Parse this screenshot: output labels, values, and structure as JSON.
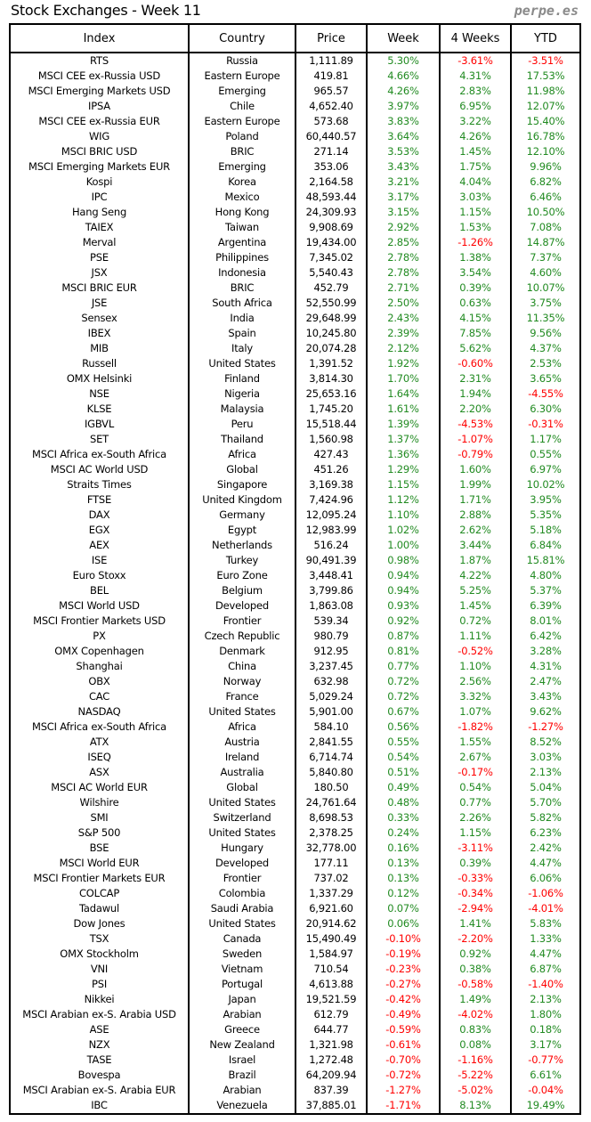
{
  "title": "Stock Exchanges - Week 11",
  "brand": "perpe.es",
  "colors": {
    "positive": "#228b22",
    "negative": "#ff0000"
  },
  "columns": [
    "Index",
    "Country",
    "Price",
    "Week",
    "4 Weeks",
    "YTD"
  ],
  "rows": [
    [
      "RTS",
      "Russia",
      "1,111.89",
      "5.30%",
      "-3.61%",
      "-3.51%"
    ],
    [
      "MSCI CEE ex-Russia USD",
      "Eastern Europe",
      "419.81",
      "4.66%",
      "4.31%",
      "17.53%"
    ],
    [
      "MSCI Emerging Markets USD",
      "Emerging",
      "965.57",
      "4.26%",
      "2.83%",
      "11.98%"
    ],
    [
      "IPSA",
      "Chile",
      "4,652.40",
      "3.97%",
      "6.95%",
      "12.07%"
    ],
    [
      "MSCI CEE ex-Russia EUR",
      "Eastern Europe",
      "573.68",
      "3.83%",
      "3.22%",
      "15.40%"
    ],
    [
      "WIG",
      "Poland",
      "60,440.57",
      "3.64%",
      "4.26%",
      "16.78%"
    ],
    [
      "MSCI BRIC USD",
      "BRIC",
      "271.14",
      "3.53%",
      "1.45%",
      "12.10%"
    ],
    [
      "MSCI Emerging Markets EUR",
      "Emerging",
      "353.06",
      "3.43%",
      "1.75%",
      "9.96%"
    ],
    [
      "Kospi",
      "Korea",
      "2,164.58",
      "3.21%",
      "4.04%",
      "6.82%"
    ],
    [
      "IPC",
      "Mexico",
      "48,593.44",
      "3.17%",
      "3.03%",
      "6.46%"
    ],
    [
      "Hang Seng",
      "Hong Kong",
      "24,309.93",
      "3.15%",
      "1.15%",
      "10.50%"
    ],
    [
      "TAIEX",
      "Taiwan",
      "9,908.69",
      "2.92%",
      "1.53%",
      "7.08%"
    ],
    [
      "Merval",
      "Argentina",
      "19,434.00",
      "2.85%",
      "-1.26%",
      "14.87%"
    ],
    [
      "PSE",
      "Philippines",
      "7,345.02",
      "2.78%",
      "1.38%",
      "7.37%"
    ],
    [
      "JSX",
      "Indonesia",
      "5,540.43",
      "2.78%",
      "3.54%",
      "4.60%"
    ],
    [
      "MSCI BRIC EUR",
      "BRIC",
      "452.79",
      "2.71%",
      "0.39%",
      "10.07%"
    ],
    [
      "JSE",
      "South Africa",
      "52,550.99",
      "2.50%",
      "0.63%",
      "3.75%"
    ],
    [
      "Sensex",
      "India",
      "29,648.99",
      "2.43%",
      "4.15%",
      "11.35%"
    ],
    [
      "IBEX",
      "Spain",
      "10,245.80",
      "2.39%",
      "7.85%",
      "9.56%"
    ],
    [
      "MIB",
      "Italy",
      "20,074.28",
      "2.12%",
      "5.62%",
      "4.37%"
    ],
    [
      "Russell",
      "United States",
      "1,391.52",
      "1.92%",
      "-0.60%",
      "2.53%"
    ],
    [
      "OMX Helsinki",
      "Finland",
      "3,814.30",
      "1.70%",
      "2.31%",
      "3.65%"
    ],
    [
      "NSE",
      "Nigeria",
      "25,653.16",
      "1.64%",
      "1.94%",
      "-4.55%"
    ],
    [
      "KLSE",
      "Malaysia",
      "1,745.20",
      "1.61%",
      "2.20%",
      "6.30%"
    ],
    [
      "IGBVL",
      "Peru",
      "15,518.44",
      "1.39%",
      "-4.53%",
      "-0.31%"
    ],
    [
      "SET",
      "Thailand",
      "1,560.98",
      "1.37%",
      "-1.07%",
      "1.17%"
    ],
    [
      "MSCI Africa ex-South Africa",
      "Africa",
      "427.43",
      "1.36%",
      "-0.79%",
      "0.55%"
    ],
    [
      "MSCI AC World USD",
      "Global",
      "451.26",
      "1.29%",
      "1.60%",
      "6.97%"
    ],
    [
      "Straits Times",
      "Singapore",
      "3,169.38",
      "1.15%",
      "1.99%",
      "10.02%"
    ],
    [
      "FTSE",
      "United Kingdom",
      "7,424.96",
      "1.12%",
      "1.71%",
      "3.95%"
    ],
    [
      "DAX",
      "Germany",
      "12,095.24",
      "1.10%",
      "2.88%",
      "5.35%"
    ],
    [
      "EGX",
      "Egypt",
      "12,983.99",
      "1.02%",
      "2.62%",
      "5.18%"
    ],
    [
      "AEX",
      "Netherlands",
      "516.24",
      "1.00%",
      "3.44%",
      "6.84%"
    ],
    [
      "ISE",
      "Turkey",
      "90,491.39",
      "0.98%",
      "1.87%",
      "15.81%"
    ],
    [
      "Euro Stoxx",
      "Euro Zone",
      "3,448.41",
      "0.94%",
      "4.22%",
      "4.80%"
    ],
    [
      "BEL",
      "Belgium",
      "3,799.86",
      "0.94%",
      "5.25%",
      "5.37%"
    ],
    [
      "MSCI World USD",
      "Developed",
      "1,863.08",
      "0.93%",
      "1.45%",
      "6.39%"
    ],
    [
      "MSCI Frontier Markets USD",
      "Frontier",
      "539.34",
      "0.92%",
      "0.72%",
      "8.01%"
    ],
    [
      "PX",
      "Czech Republic",
      "980.79",
      "0.87%",
      "1.11%",
      "6.42%"
    ],
    [
      "OMX Copenhagen",
      "Denmark",
      "912.95",
      "0.81%",
      "-0.52%",
      "3.28%"
    ],
    [
      "Shanghai",
      "China",
      "3,237.45",
      "0.77%",
      "1.10%",
      "4.31%"
    ],
    [
      "OBX",
      "Norway",
      "632.98",
      "0.72%",
      "2.56%",
      "2.47%"
    ],
    [
      "CAC",
      "France",
      "5,029.24",
      "0.72%",
      "3.32%",
      "3.43%"
    ],
    [
      "NASDAQ",
      "United States",
      "5,901.00",
      "0.67%",
      "1.07%",
      "9.62%"
    ],
    [
      "MSCI Africa ex-South Africa",
      "Africa",
      "584.10",
      "0.56%",
      "-1.82%",
      "-1.27%"
    ],
    [
      "ATX",
      "Austria",
      "2,841.55",
      "0.55%",
      "1.55%",
      "8.52%"
    ],
    [
      "ISEQ",
      "Ireland",
      "6,714.74",
      "0.54%",
      "2.67%",
      "3.03%"
    ],
    [
      "ASX",
      "Australia",
      "5,840.80",
      "0.51%",
      "-0.17%",
      "2.13%"
    ],
    [
      "MSCI AC World EUR",
      "Global",
      "180.50",
      "0.49%",
      "0.54%",
      "5.04%"
    ],
    [
      "Wilshire",
      "United States",
      "24,761.64",
      "0.48%",
      "0.77%",
      "5.70%"
    ],
    [
      "SMI",
      "Switzerland",
      "8,698.53",
      "0.33%",
      "2.26%",
      "5.82%"
    ],
    [
      "S&P 500",
      "United States",
      "2,378.25",
      "0.24%",
      "1.15%",
      "6.23%"
    ],
    [
      "BSE",
      "Hungary",
      "32,778.00",
      "0.16%",
      "-3.11%",
      "2.42%"
    ],
    [
      "MSCI World EUR",
      "Developed",
      "177.11",
      "0.13%",
      "0.39%",
      "4.47%"
    ],
    [
      "MSCI Frontier Markets EUR",
      "Frontier",
      "737.02",
      "0.13%",
      "-0.33%",
      "6.06%"
    ],
    [
      "COLCAP",
      "Colombia",
      "1,337.29",
      "0.12%",
      "-0.34%",
      "-1.06%"
    ],
    [
      "Tadawul",
      "Saudi Arabia",
      "6,921.60",
      "0.07%",
      "-2.94%",
      "-4.01%"
    ],
    [
      "Dow Jones",
      "United States",
      "20,914.62",
      "0.06%",
      "1.41%",
      "5.83%"
    ],
    [
      "TSX",
      "Canada",
      "15,490.49",
      "-0.10%",
      "-2.20%",
      "1.33%"
    ],
    [
      "OMX Stockholm",
      "Sweden",
      "1,584.97",
      "-0.19%",
      "0.92%",
      "4.47%"
    ],
    [
      "VNI",
      "Vietnam",
      "710.54",
      "-0.23%",
      "0.38%",
      "6.87%"
    ],
    [
      "PSI",
      "Portugal",
      "4,613.88",
      "-0.27%",
      "-0.58%",
      "-1.40%"
    ],
    [
      "Nikkei",
      "Japan",
      "19,521.59",
      "-0.42%",
      "1.49%",
      "2.13%"
    ],
    [
      "MSCI Arabian ex-S. Arabia USD",
      "Arabian",
      "612.79",
      "-0.49%",
      "-4.02%",
      "1.80%"
    ],
    [
      "ASE",
      "Greece",
      "644.77",
      "-0.59%",
      "0.83%",
      "0.18%"
    ],
    [
      "NZX",
      "New Zealand",
      "1,321.98",
      "-0.61%",
      "0.08%",
      "3.17%"
    ],
    [
      "TASE",
      "Israel",
      "1,272.48",
      "-0.70%",
      "-1.16%",
      "-0.77%"
    ],
    [
      "Bovespa",
      "Brazil",
      "64,209.94",
      "-0.72%",
      "-5.22%",
      "6.61%"
    ],
    [
      "MSCI Arabian ex-S. Arabia EUR",
      "Arabian",
      "837.39",
      "-1.27%",
      "-5.02%",
      "-0.04%"
    ],
    [
      "IBC",
      "Venezuela",
      "37,885.01",
      "-1.71%",
      "8.13%",
      "19.49%"
    ]
  ]
}
